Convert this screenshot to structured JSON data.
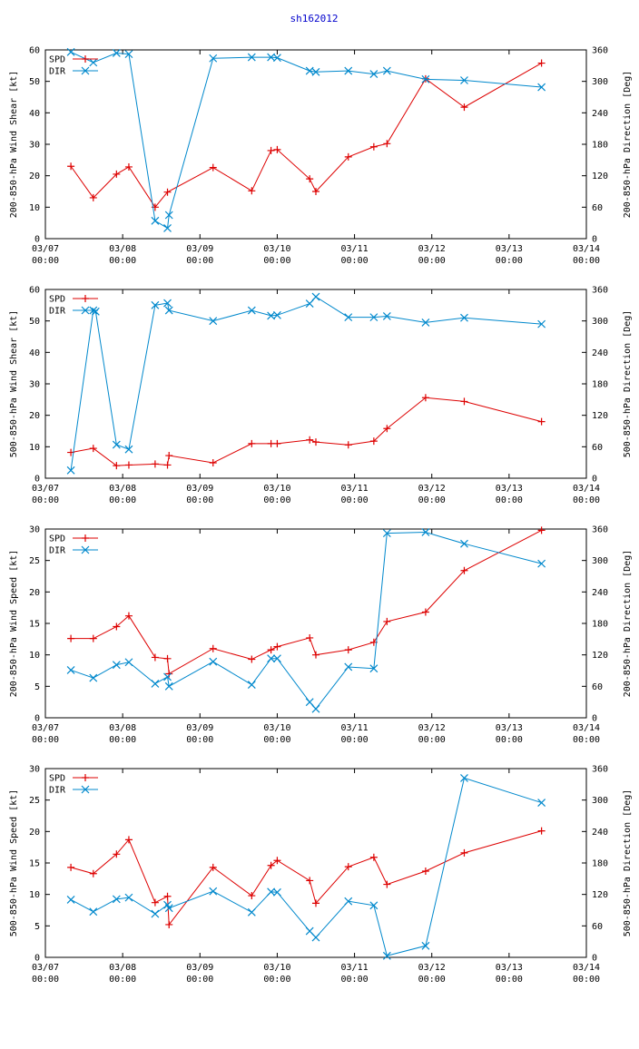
{
  "title": "sh162012",
  "colors": {
    "spd": "#dd0000",
    "dir": "#0088cc",
    "title": "#0000cc",
    "axis": "#000000"
  },
  "x_ticks": [
    {
      "x": 0,
      "date": "03/07",
      "time": "00:00"
    },
    {
      "x": 1,
      "date": "03/08",
      "time": "00:00"
    },
    {
      "x": 2,
      "date": "03/09",
      "time": "00:00"
    },
    {
      "x": 3,
      "date": "03/10",
      "time": "00:00"
    },
    {
      "x": 4,
      "date": "03/11",
      "time": "00:00"
    },
    {
      "x": 5,
      "date": "03/12",
      "time": "00:00"
    },
    {
      "x": 6,
      "date": "03/13",
      "time": "00:00"
    },
    {
      "x": 7,
      "date": "03/14",
      "time": "00:00"
    }
  ],
  "chart_data": [
    {
      "type": "line",
      "ylabel": "200-850-hPa Wind Shear [kt]",
      "y2label": "200-850-hPa Direction [Deg]",
      "xlim": [
        0,
        7
      ],
      "ylim": [
        0,
        60
      ],
      "y2lim": [
        0,
        360
      ],
      "yticks": [
        "0",
        "10",
        "20",
        "30",
        "40",
        "50",
        "60"
      ],
      "y2ticks": [
        "0",
        "60",
        "120",
        "180",
        "240",
        "300",
        "360"
      ],
      "legend": [
        "SPD",
        "DIR"
      ],
      "series": [
        {
          "name": "SPD",
          "axis": "left",
          "x": [
            0.33,
            0.62,
            0.92,
            1.08,
            1.42,
            1.58,
            2.17,
            2.67,
            2.92,
            3.0,
            3.42,
            3.5,
            3.92,
            4.25,
            4.42,
            4.92,
            5.42,
            6.42
          ],
          "y": [
            23,
            13,
            20.5,
            22.8,
            10,
            14.8,
            22.6,
            15.2,
            28,
            28.3,
            19,
            15,
            26,
            29.2,
            30.2,
            50.8,
            41.8,
            55.8
          ]
        },
        {
          "name": "DIR",
          "axis": "right",
          "x": [
            0.33,
            0.62,
            0.92,
            1.08,
            1.42,
            1.58,
            1.6,
            2.17,
            2.67,
            2.92,
            3.0,
            3.42,
            3.5,
            3.92,
            4.25,
            4.42,
            4.92,
            5.42,
            6.42
          ],
          "y": [
            356,
            336,
            354,
            352,
            34,
            20,
            45,
            344,
            346,
            346,
            345,
            320,
            318,
            320,
            314,
            320,
            304,
            302,
            289
          ]
        }
      ]
    },
    {
      "type": "line",
      "ylabel": "500-850-hPa Wind Shear [kt]",
      "y2label": "500-850-hPa Direction [Deg]",
      "xlim": [
        0,
        7
      ],
      "ylim": [
        0,
        60
      ],
      "y2lim": [
        0,
        360
      ],
      "yticks": [
        "0",
        "10",
        "20",
        "30",
        "40",
        "50",
        "60"
      ],
      "y2ticks": [
        "0",
        "60",
        "120",
        "180",
        "240",
        "300",
        "360"
      ],
      "legend": [
        "SPD",
        "DIR"
      ],
      "series": [
        {
          "name": "SPD",
          "axis": "left",
          "x": [
            0.33,
            0.62,
            0.92,
            1.08,
            1.42,
            1.58,
            1.6,
            2.17,
            2.67,
            2.92,
            3.0,
            3.42,
            3.5,
            3.92,
            4.25,
            4.42,
            4.92,
            5.42,
            6.42
          ],
          "y": [
            8.2,
            9.5,
            4,
            4.2,
            4.5,
            4.2,
            7.2,
            4.9,
            11,
            11,
            11,
            12.2,
            11.5,
            10.6,
            11.8,
            15.8,
            25.6,
            24.4,
            18
          ]
        },
        {
          "name": "DIR",
          "axis": "right",
          "x": [
            0.33,
            0.62,
            0.65,
            0.92,
            1.08,
            1.42,
            1.58,
            1.6,
            2.17,
            2.67,
            2.92,
            3.0,
            3.42,
            3.5,
            3.92,
            4.25,
            4.42,
            4.92,
            5.42,
            6.42
          ],
          "y": [
            15,
            320,
            318,
            64,
            55,
            330,
            334,
            320,
            300,
            320,
            310,
            311,
            333,
            346,
            307,
            307,
            309,
            297,
            306,
            294
          ]
        }
      ]
    },
    {
      "type": "line",
      "ylabel": "200-850-hPa Wind Speed [kt]",
      "y2label": "200-850-hPa Direction [Deg]",
      "xlim": [
        0,
        7
      ],
      "ylim": [
        0,
        30
      ],
      "y2lim": [
        0,
        360
      ],
      "yticks": [
        "0",
        "5",
        "10",
        "15",
        "20",
        "25",
        "30"
      ],
      "y2ticks": [
        "0",
        "60",
        "120",
        "180",
        "240",
        "300",
        "360"
      ],
      "legend": [
        "SPD",
        "DIR"
      ],
      "series": [
        {
          "name": "SPD",
          "axis": "left",
          "x": [
            0.33,
            0.62,
            0.92,
            1.08,
            1.42,
            1.58,
            1.6,
            2.17,
            2.67,
            2.92,
            3.0,
            3.42,
            3.5,
            3.92,
            4.25,
            4.42,
            4.92,
            5.42,
            6.42
          ],
          "y": [
            12.6,
            12.6,
            14.5,
            16.2,
            9.6,
            9.4,
            7,
            11,
            9.3,
            10.8,
            11.3,
            12.7,
            10,
            10.8,
            12,
            15.3,
            16.8,
            23.4,
            29.8
          ]
        },
        {
          "name": "DIR",
          "axis": "right",
          "x": [
            0.33,
            0.62,
            0.92,
            1.08,
            1.42,
            1.58,
            1.6,
            2.17,
            2.67,
            2.92,
            3.0,
            3.42,
            3.5,
            3.92,
            4.25,
            4.42,
            4.92,
            5.42,
            6.42
          ],
          "y": [
            91,
            76,
            101,
            106,
            65,
            78,
            60,
            107,
            63,
            113,
            113,
            30,
            17,
            97,
            94,
            352,
            354,
            332,
            294
          ]
        }
      ]
    },
    {
      "type": "line",
      "ylabel": "500-850-hPa Wind Speed [kt]",
      "y2label": "500-850-hPa Direction [Deg]",
      "xlim": [
        0,
        7
      ],
      "ylim": [
        0,
        30
      ],
      "y2lim": [
        0,
        360
      ],
      "yticks": [
        "0",
        "5",
        "10",
        "15",
        "20",
        "25",
        "30"
      ],
      "y2ticks": [
        "0",
        "60",
        "120",
        "180",
        "240",
        "300",
        "360"
      ],
      "legend": [
        "SPD",
        "DIR"
      ],
      "series": [
        {
          "name": "SPD",
          "axis": "left",
          "x": [
            0.33,
            0.62,
            0.92,
            1.08,
            1.42,
            1.58,
            1.6,
            2.17,
            2.67,
            2.92,
            3.0,
            3.42,
            3.5,
            3.92,
            4.25,
            4.42,
            4.92,
            5.42,
            6.42
          ],
          "y": [
            14.3,
            13.3,
            16.4,
            18.7,
            8.7,
            9.7,
            5.2,
            14.3,
            9.8,
            14.6,
            15.4,
            12.2,
            8.6,
            14.4,
            15.9,
            11.6,
            13.7,
            16.6,
            20.1
          ]
        },
        {
          "name": "DIR",
          "axis": "right",
          "x": [
            0.33,
            0.62,
            0.92,
            1.08,
            1.42,
            1.58,
            1.6,
            2.17,
            2.67,
            2.92,
            3.0,
            3.42,
            3.5,
            3.92,
            4.25,
            4.42,
            4.92,
            5.42,
            6.42
          ],
          "y": [
            110,
            87,
            111,
            114,
            83,
            100,
            94,
            126,
            86,
            125,
            124,
            50,
            38,
            107,
            99,
            3,
            22,
            342,
            295
          ]
        }
      ]
    }
  ]
}
